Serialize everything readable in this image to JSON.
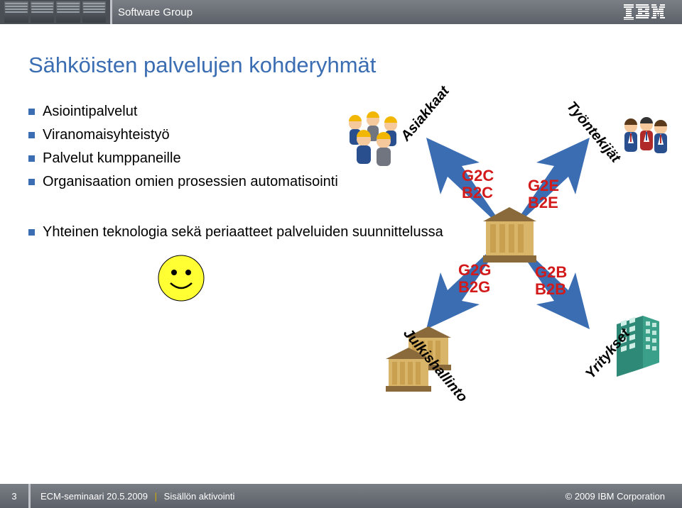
{
  "header": {
    "title": "Software Group",
    "logo_name": "ibm-logo"
  },
  "slide": {
    "title": "Sähköisten palvelujen kohderyhmät",
    "title_color": "#3b6db3",
    "bullet_color": "#3b6db3",
    "text_color": "#000000",
    "bullets_group1": [
      "Asiointipalvelut",
      "Viranomaisyhteistyö",
      "Palvelut kumppaneille",
      "Organisaation omien prosessien automatisointi"
    ],
    "bullets_group2": [
      "Yhteinen teknologia sekä periaatteet palveluiden suunnittelussa"
    ]
  },
  "diagram": {
    "arrow_fill": "#3b6db3",
    "quadrants": {
      "top_left": {
        "lines": [
          "G2C",
          "B2C"
        ],
        "color": "#d31a1a",
        "audience": "Asiakkaat",
        "audience_color": "#000000"
      },
      "top_right": {
        "lines": [
          "G2E",
          "B2E"
        ],
        "color": "#d31a1a",
        "audience": "Työntekijät",
        "audience_color": "#000000"
      },
      "bot_left": {
        "lines": [
          "G2G",
          "B2G"
        ],
        "color": "#d31a1a",
        "audience": "Julkishallinto",
        "audience_color": "#000000"
      },
      "bot_right": {
        "lines": [
          "G2B",
          "B2B"
        ],
        "color": "#d31a1a",
        "audience": "Yritykset",
        "audience_color": "#000000"
      }
    },
    "icon_colors": {
      "hardhat": "#f2b705",
      "suit_blue": "#2a4f8f",
      "suit_red": "#b02a2a",
      "face": "#f5c99b",
      "gov_building": "#d9b56a",
      "gov_roof": "#8a6a3a",
      "office_building": "#3aa08a",
      "office_windows": "#ffffff"
    }
  },
  "smiley": {
    "face_fill": "#ffff33",
    "outline": "#000000"
  },
  "footer": {
    "page_number": "3",
    "event": "ECM-seminaari 20.5.2009",
    "subtitle": "Sisällön aktivointi",
    "copyright": "© 2009 IBM Corporation",
    "separator_color": "#d5b000"
  }
}
